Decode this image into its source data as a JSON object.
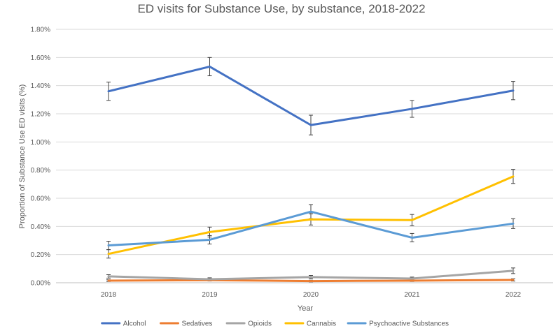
{
  "chart_data": {
    "type": "line",
    "title": "ED visits for Substance Use, by substance, 2018-2022",
    "xlabel": "Year",
    "ylabel": "Proportion of Substance Use ED visits (%)",
    "x": [
      "2018",
      "2019",
      "2020",
      "2021",
      "2022"
    ],
    "ylim": [
      0,
      1.8
    ],
    "yticks": [
      "0.00%",
      "0.20%",
      "0.40%",
      "0.60%",
      "0.80%",
      "1.00%",
      "1.20%",
      "1.40%",
      "1.60%",
      "1.80%"
    ],
    "grid": true,
    "legend_position": "bottom",
    "series": [
      {
        "name": "Alcohol",
        "color": "#4472C4",
        "values": [
          1.36,
          1.535,
          1.12,
          1.235,
          1.365
        ],
        "error": [
          0.065,
          0.065,
          0.07,
          0.06,
          0.065
        ]
      },
      {
        "name": "Sedatives",
        "color": "#ED7D31",
        "values": [
          0.015,
          0.018,
          0.012,
          0.015,
          0.02
        ],
        "error": [
          0.006,
          0.006,
          0.006,
          0.006,
          0.008
        ]
      },
      {
        "name": "Opioids",
        "color": "#A5A5A5",
        "values": [
          0.045,
          0.025,
          0.04,
          0.03,
          0.085
        ],
        "error": [
          0.012,
          0.01,
          0.012,
          0.01,
          0.02
        ]
      },
      {
        "name": "Cannabis",
        "color": "#FFC000",
        "values": [
          0.205,
          0.36,
          0.45,
          0.445,
          0.755
        ],
        "error": [
          0.03,
          0.035,
          0.04,
          0.04,
          0.05
        ]
      },
      {
        "name": "Psychoactive Substances",
        "color": "#5B9BD5",
        "values": [
          0.265,
          0.305,
          0.505,
          0.32,
          0.42
        ],
        "error": [
          0.03,
          0.03,
          0.05,
          0.03,
          0.035
        ]
      }
    ]
  }
}
